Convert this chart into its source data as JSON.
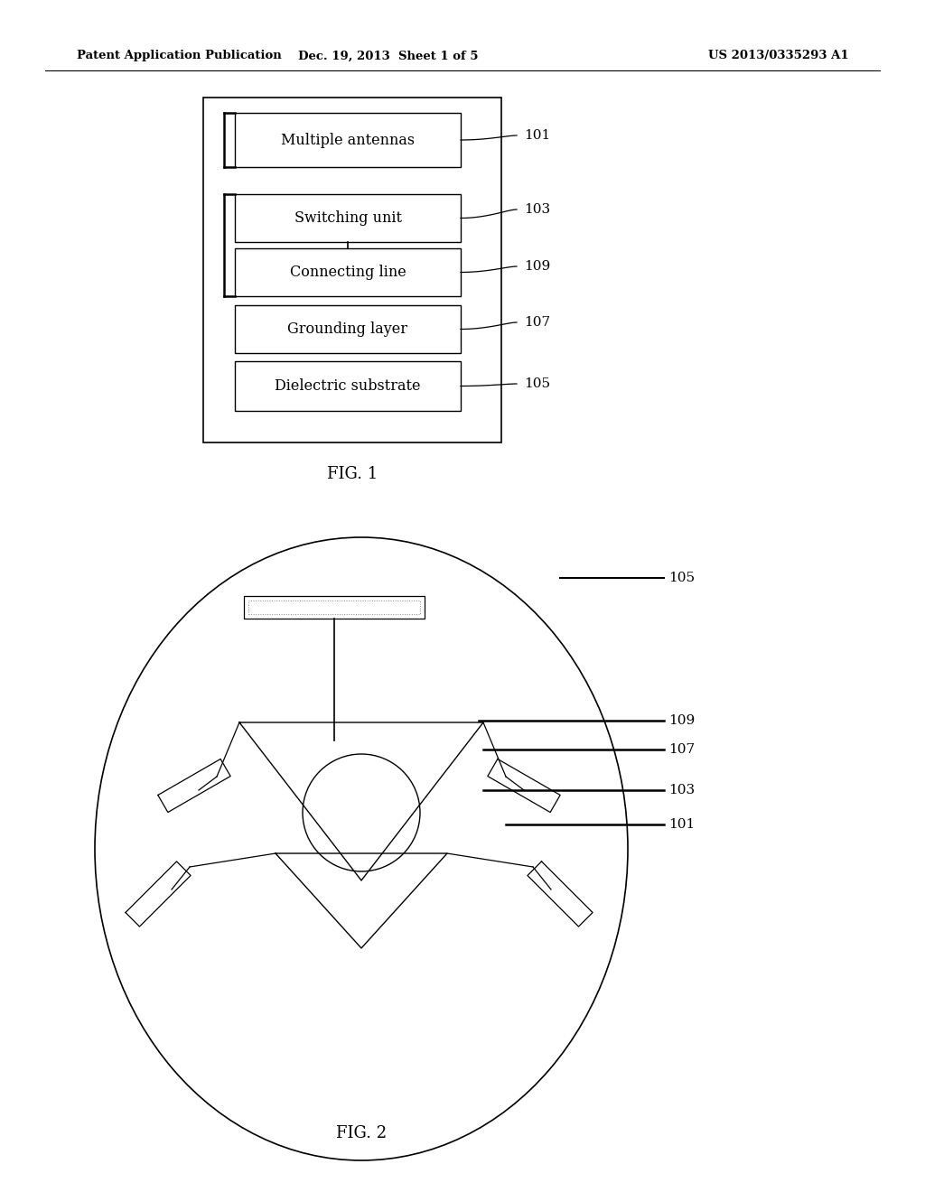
{
  "bg_color": "#ffffff",
  "line_color": "#000000",
  "header_left": "Patent Application Publication",
  "header_mid": "Dec. 19, 2013  Sheet 1 of 5",
  "header_right": "US 2013/0335293 A1",
  "fig1_label": "FIG. 1",
  "fig2_label": "FIG. 2",
  "fig1_boxes": [
    {
      "label": "Multiple antennas",
      "ref": "101"
    },
    {
      "label": "Switching unit",
      "ref": "103"
    },
    {
      "label": "Connecting line",
      "ref": "109"
    },
    {
      "label": "Grounding layer",
      "ref": "107"
    },
    {
      "label": "Dielectric substrate",
      "ref": "105"
    }
  ],
  "fig2_refs": [
    "105",
    "109",
    "107",
    "103",
    "101"
  ]
}
